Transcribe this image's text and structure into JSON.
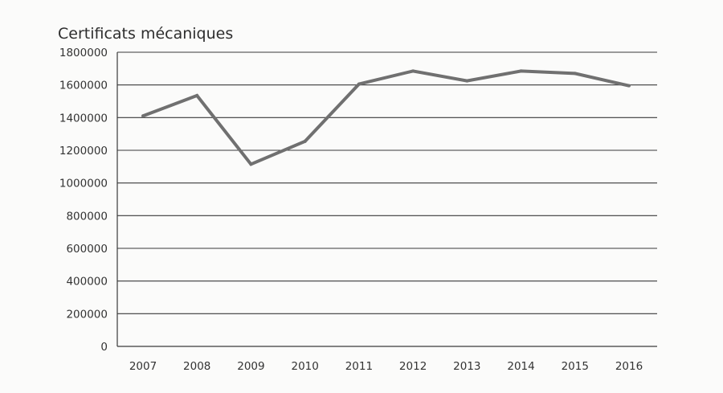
{
  "chart_data": {
    "type": "line",
    "title": "Certificats mécaniques",
    "xlabel": "",
    "ylabel": "",
    "categories": [
      "2007",
      "2008",
      "2009",
      "2010",
      "2011",
      "2012",
      "2013",
      "2014",
      "2015",
      "2016"
    ],
    "series": [
      {
        "values": [
          1410000,
          1535000,
          1115000,
          1255000,
          1605000,
          1685000,
          1625000,
          1685000,
          1670000,
          1595000
        ]
      }
    ],
    "ylim": [
      0,
      1800000
    ],
    "yticks": [
      "0",
      "200000",
      "400000",
      "600000",
      "800000",
      "1000000",
      "1200000",
      "1400000",
      "1600000",
      "1800000"
    ],
    "grid": true,
    "legend": "none",
    "colors": {
      "line": "#707070",
      "grid": "#3a3a3a",
      "text": "#333333"
    }
  }
}
